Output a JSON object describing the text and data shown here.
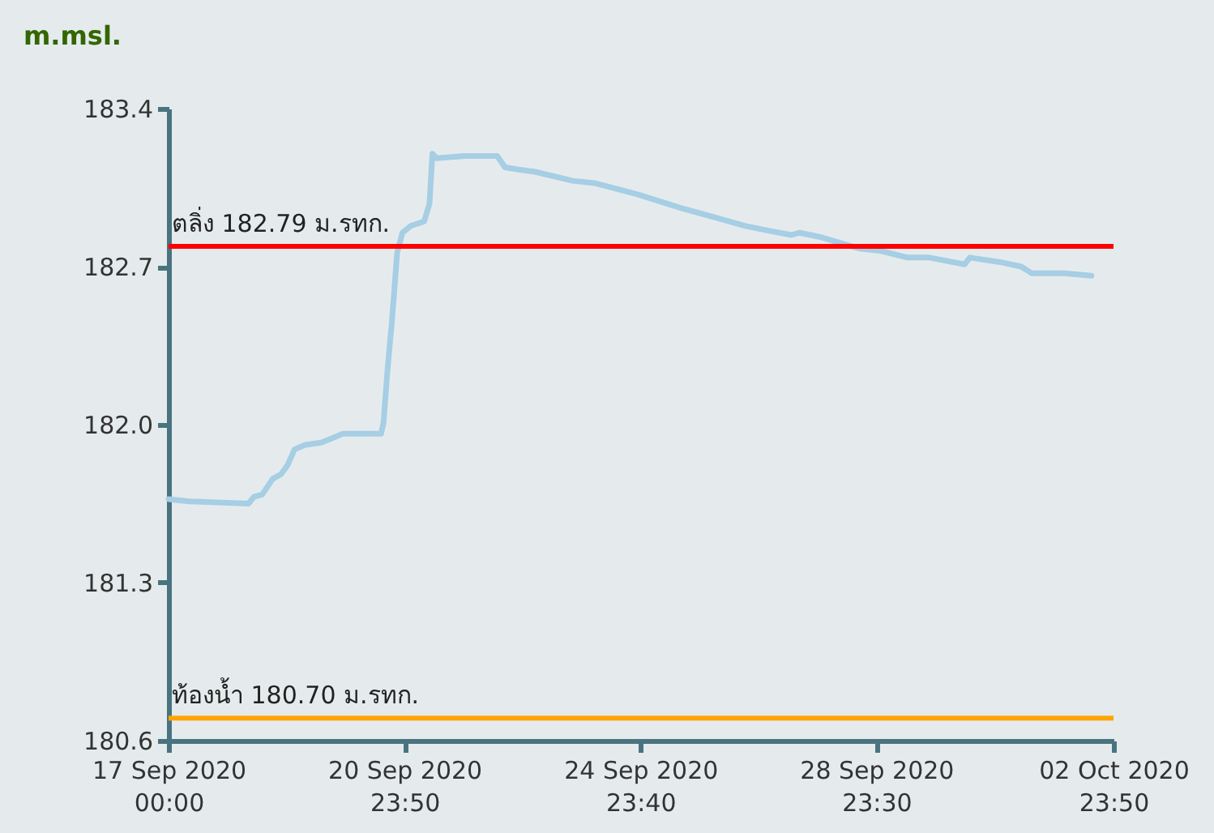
{
  "chart_data": {
    "type": "line",
    "ylabel": "m.msl.",
    "x": [
      "2020-09-17T00:00",
      "2020-09-17T08:20",
      "2020-09-18T08:30",
      "2020-09-18T10:40",
      "2020-09-18T14:00",
      "2020-09-18T18:20",
      "2020-09-18T21:40",
      "2020-09-19T00:20",
      "2020-09-19T03:10",
      "2020-09-19T07:30",
      "2020-09-19T14:00",
      "2020-09-19T18:30",
      "2020-09-19T22:50",
      "2020-09-20T14:20",
      "2020-09-20T15:20",
      "2020-09-20T16:50",
      "2020-09-20T18:40",
      "2020-09-20T19:40",
      "2020-09-20T20:50",
      "2020-09-20T23:00",
      "2020-09-21T02:20",
      "2020-09-21T07:50",
      "2020-09-21T10:00",
      "2020-09-21T11:10",
      "2020-09-21T12:50",
      "2020-09-22T00:20",
      "2020-09-22T13:30",
      "2020-09-22T16:40",
      "2020-09-22T22:10",
      "2020-09-23T04:50",
      "2020-09-23T20:10",
      "2020-09-24T05:00",
      "2020-09-24T22:30",
      "2020-09-25T16:00",
      "2020-09-26T05:10",
      "2020-09-26T18:20",
      "2020-09-27T03:10",
      "2020-09-27T13:00",
      "2020-09-27T16:20",
      "2020-09-28T01:10",
      "2020-09-28T16:30",
      "2020-09-29T01:10",
      "2020-09-29T12:10",
      "2020-09-29T21:00",
      "2020-09-30T11:20",
      "2020-09-30T13:30",
      "2020-10-01T01:40",
      "2020-10-01T10:20",
      "2020-10-01T14:40",
      "2020-10-02T03:50",
      "2020-10-02T14:50"
    ],
    "series": [
      {
        "color": "#a6cee4",
        "values": [
          181.67,
          181.66,
          181.65,
          181.68,
          181.69,
          181.76,
          181.78,
          181.82,
          181.89,
          181.91,
          181.92,
          181.94,
          181.96,
          181.96,
          182.01,
          182.23,
          182.45,
          182.59,
          182.76,
          182.85,
          182.88,
          182.9,
          182.98,
          183.2,
          183.18,
          183.19,
          183.19,
          183.14,
          183.13,
          183.12,
          183.08,
          183.07,
          183.02,
          182.96,
          182.92,
          182.88,
          182.86,
          182.84,
          182.85,
          182.83,
          182.78,
          182.77,
          182.74,
          182.74,
          182.71,
          182.74,
          182.72,
          182.7,
          182.67,
          182.67,
          182.66
        ]
      }
    ],
    "xlim": [
      "2020-09-17T00:00",
      "2020-10-02T23:50"
    ],
    "xticks": [
      {
        "value": "2020-09-17T00:00",
        "label": "17 Sep 2020 00:00"
      },
      {
        "value": "2020-09-20T23:50",
        "label": "20 Sep 2020 23:50"
      },
      {
        "value": "2020-09-24T23:40",
        "label": "24 Sep 2020 23:40"
      },
      {
        "value": "2020-09-28T23:30",
        "label": "28 Sep 2020 23:30"
      },
      {
        "value": "2020-10-02T23:50",
        "label": "02 Oct 2020 23:50"
      }
    ],
    "ylim": [
      180.6,
      183.4
    ],
    "yticks": [
      180.6,
      181.3,
      {
        "value": 182,
        "label": "182.0"
      },
      182.7,
      183.4
    ],
    "ref_lines": [
      {
        "axis": "y",
        "value": 182.79,
        "label": "ตลิ่ง 182.79 ม.รทก.",
        "color": "#ff0000"
      },
      {
        "axis": "y",
        "value": 180.7,
        "label": "ท้องน้ำ 180.70 ม.รทก.",
        "color": "#ffa500"
      }
    ],
    "grid": false,
    "line_style": "solid"
  }
}
